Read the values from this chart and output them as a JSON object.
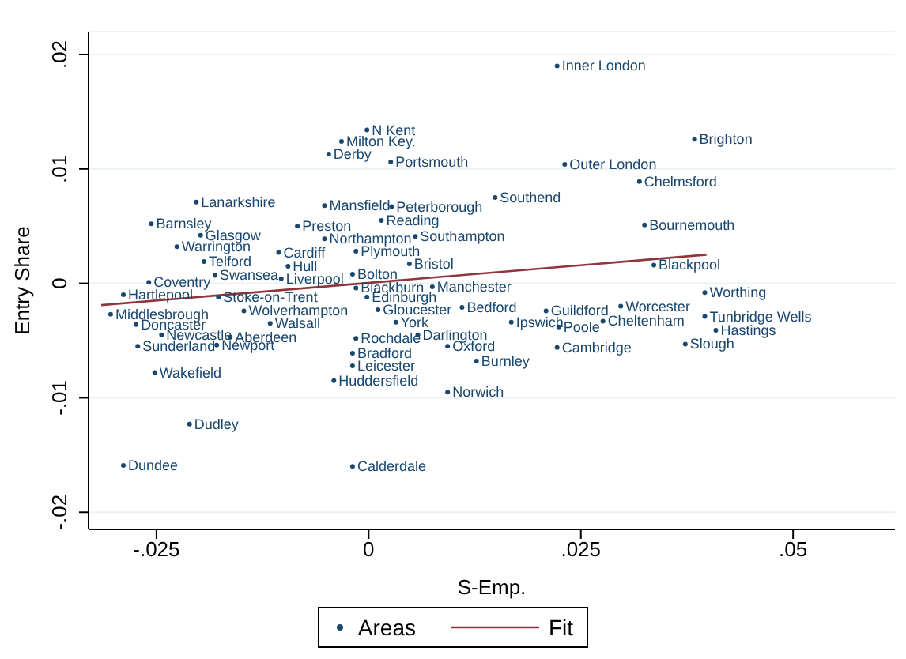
{
  "chart_data": {
    "type": "scatter",
    "xlabel": "S-Emp.",
    "ylabel": "Entry Share",
    "xlim": [
      -0.033,
      0.062
    ],
    "ylim": [
      -0.0215,
      0.022
    ],
    "xticks": [
      {
        "value": -0.025,
        "label": "-.025"
      },
      0,
      {
        "value": 0.025,
        "label": ".025"
      },
      {
        "value": 0.05,
        "label": ".05"
      }
    ],
    "yticks": [
      {
        "value": -0.02,
        "label": "-.02"
      },
      {
        "value": -0.01,
        "label": "-.01"
      },
      0,
      {
        "value": 0.01,
        "label": ".01"
      },
      {
        "value": 0.02,
        "label": ".02"
      }
    ],
    "grid": "y",
    "legend": "bottom",
    "series": [
      {
        "name": "Areas",
        "color": "#1a476f",
        "marker": "circle",
        "x": [
          0.0222,
          0.0384,
          -0.0002,
          -0.0032,
          -0.0047,
          0.0026,
          0.0231,
          0.0319,
          0.0149,
          -0.0052,
          0.0015,
          0.0027,
          -0.0203,
          -0.0256,
          -0.0198,
          -0.0084,
          -0.0052,
          0.0055,
          -0.0015,
          0.0048,
          -0.0226,
          -0.0194,
          -0.0106,
          -0.0259,
          -0.0181,
          -0.0095,
          -0.0103,
          -0.0019,
          -0.0015,
          0.0075,
          -0.0002,
          0.0336,
          0.0325,
          0.0396,
          0.0396,
          0.0409,
          0.0373,
          0.0297,
          0.0276,
          0.0209,
          0.0224,
          0.0222,
          0.0168,
          0.011,
          0.0058,
          0.0032,
          0.0011,
          0.0093,
          0.0127,
          0.0093,
          -0.0015,
          -0.0019,
          -0.0019,
          -0.0041,
          -0.0019,
          -0.0289,
          -0.0304,
          -0.0274,
          -0.0244,
          -0.0272,
          -0.0179,
          -0.0163,
          -0.0116,
          -0.0177,
          -0.0147,
          -0.0252,
          -0.0211,
          -0.0289
        ],
        "values": [
          0.019,
          0.0126,
          0.0134,
          0.0124,
          0.0113,
          0.0106,
          0.0104,
          0.0089,
          0.0075,
          0.0068,
          0.0055,
          0.0067,
          0.0071,
          0.0052,
          0.0042,
          0.005,
          0.0039,
          0.0041,
          0.0028,
          0.0017,
          0.0032,
          0.0019,
          0.0027,
          0.0001,
          0.0007,
          0.0015,
          0.0004,
          0.0008,
          -0.0004,
          -0.0003,
          -0.0012,
          0.0016,
          0.0051,
          -0.0008,
          -0.0029,
          -0.0041,
          -0.0053,
          -0.002,
          -0.0033,
          -0.0024,
          -0.0038,
          -0.0056,
          -0.0034,
          -0.0021,
          -0.0045,
          -0.0034,
          -0.0023,
          -0.0055,
          -0.0068,
          -0.0095,
          -0.0048,
          -0.0061,
          -0.0072,
          -0.0085,
          -0.016,
          -0.001,
          -0.0027,
          -0.0036,
          -0.0045,
          -0.0055,
          -0.0054,
          -0.0047,
          -0.0035,
          -0.0012,
          -0.0024,
          -0.0078,
          -0.0123,
          -0.0159
        ],
        "value_labels": [
          "Inner London",
          "Brighton",
          "N Kent",
          "Milton Key.",
          "Derby",
          "Portsmouth",
          "Outer London",
          "Chelmsford",
          "Southend",
          "Mansfield",
          "Reading",
          "Peterborough",
          "Lanarkshire",
          "Barnsley",
          "Glasgow",
          "Preston",
          "Northampton",
          "Southampton",
          "Plymouth",
          "Bristol",
          "Warrington",
          "Telford",
          "Cardiff",
          "Coventry",
          "Swansea",
          "Hull",
          "Liverpool",
          "Bolton",
          "Blackburn",
          "Manchester",
          "Edinburgh",
          "Blackpool",
          "Bournemouth",
          "Worthing",
          "Tunbridge Wells",
          "Hastings",
          "Slough",
          "Worcester",
          "Cheltenham",
          "Guildford",
          "Poole",
          "Cambridge",
          "Ipswich",
          "Bedford",
          "Darlington",
          "York",
          "Gloucester",
          "Oxford",
          "Burnley",
          "Norwich",
          "Rochdale",
          "Bradford",
          "Leicester",
          "Huddersfield",
          "Calderdale",
          "Hartlepool",
          "Middlesbrough",
          "Doncaster",
          "Newcastle",
          "Sunderland",
          "Newport",
          "Aberdeen",
          "Walsall",
          "Stoke-on-Trent",
          "Wolverhampton",
          "Wakefield",
          "Dudley",
          "Dundee"
        ]
      },
      {
        "name": "Fit",
        "type": "line",
        "color": "#90353b",
        "marker": "none",
        "x": [
          -0.0315,
          0.0398
        ],
        "values": [
          -0.0019,
          0.0025
        ]
      }
    ]
  }
}
